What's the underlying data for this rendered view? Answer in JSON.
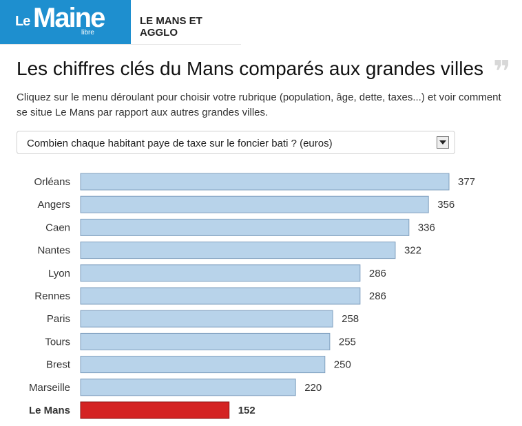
{
  "header": {
    "logo": {
      "le": "Le",
      "main": "Maine",
      "sub": "libre"
    },
    "section": "LE MANS ET AGGLO"
  },
  "title": "Les chiffres clés du Mans comparés aux grandes villes",
  "description": "Cliquez sur le menu déroulant pour choisir votre rubrique (population, âge, dette, taxes...) et voir comment se situe Le Mans par rapport aux autres grandes villes.",
  "dropdown": {
    "selected": "Combien chaque habitant paye de taxe sur le foncier bati ? (euros)"
  },
  "colors": {
    "bar": "#b8d3ea",
    "bar_border": "#7f9fbe",
    "highlight": "#d42323",
    "highlight_border": "#8a1313",
    "header_blue": "#1e8fcf"
  },
  "chart_data": {
    "type": "bar",
    "orientation": "horizontal",
    "categories": [
      "Orléans",
      "Angers",
      "Caen",
      "Nantes",
      "Lyon",
      "Rennes",
      "Paris",
      "Tours",
      "Brest",
      "Marseille",
      "Le Mans"
    ],
    "values": [
      377,
      356,
      336,
      322,
      286,
      286,
      258,
      255,
      250,
      220,
      152
    ],
    "highlight": "Le Mans",
    "xlim": [
      0,
      377
    ],
    "grid": false,
    "title": "",
    "xlabel": "",
    "ylabel": ""
  }
}
